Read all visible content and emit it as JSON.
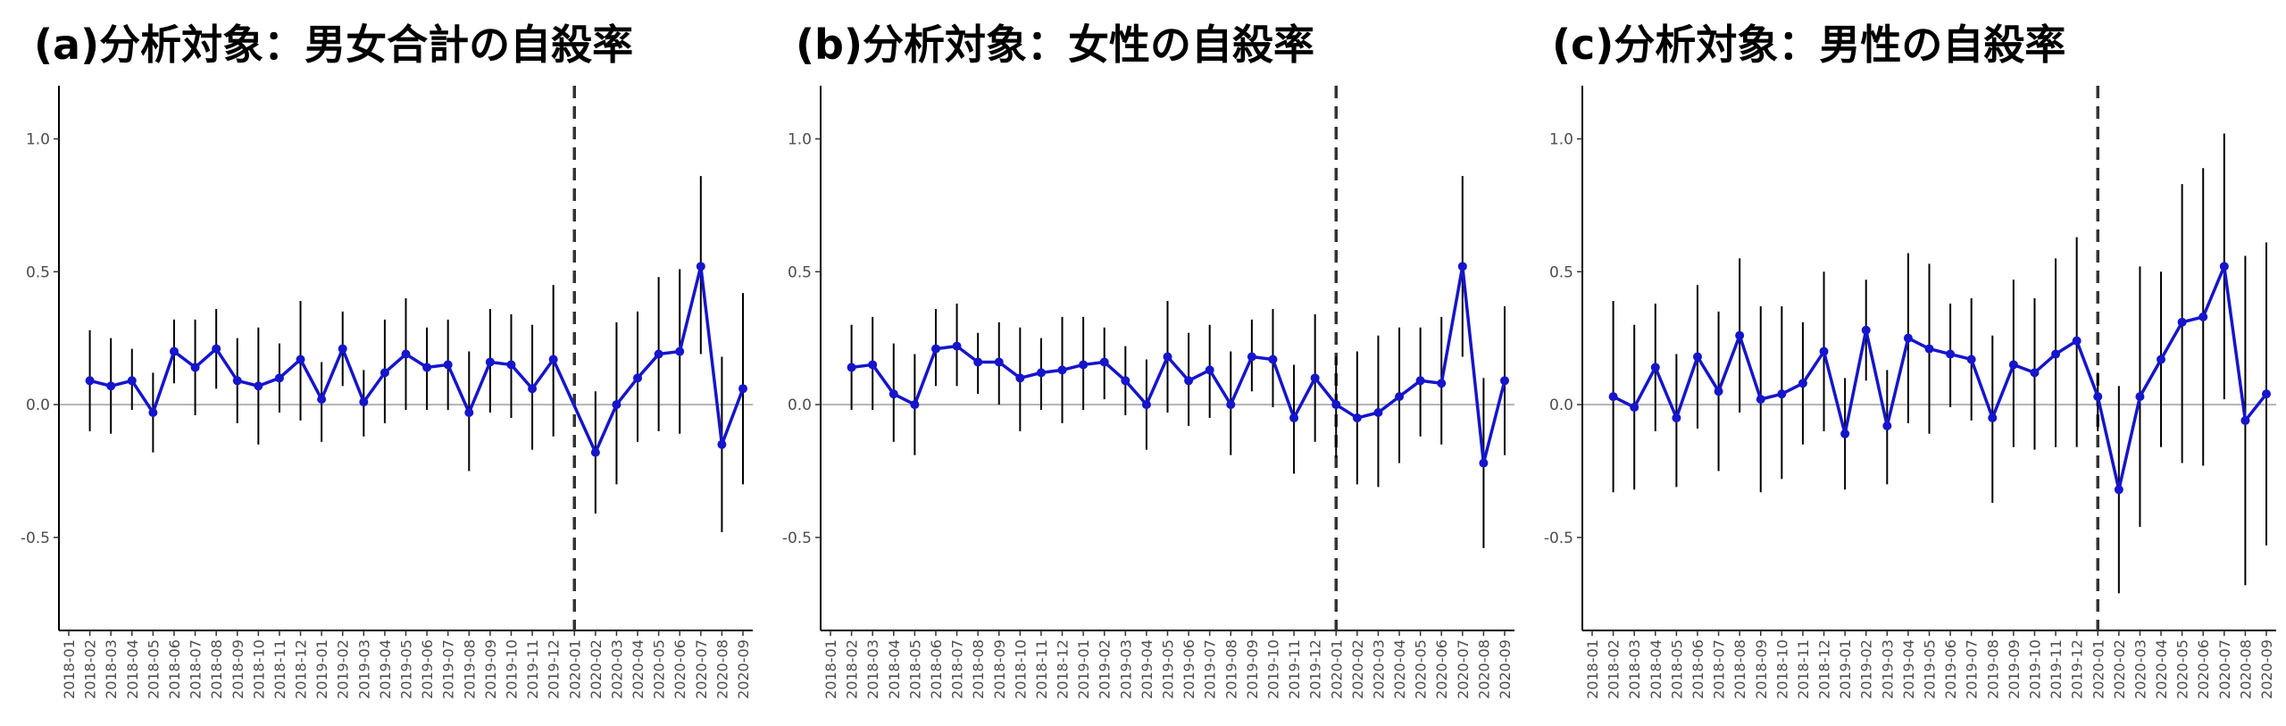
{
  "chart_data": [
    {
      "type": "line",
      "title": "(a)分析対象：男女合計の自殺率",
      "xlabel": "",
      "ylabel": "",
      "ylim": [
        -0.85,
        1.2
      ],
      "yticks": [
        "1.0",
        "0.5",
        "0.0",
        "-0.5"
      ],
      "ytick_values": [
        1.0,
        0.5,
        0.0,
        -0.5
      ],
      "reference_date": "2020-01",
      "reference_style": "dashed",
      "x": [
        "2018-01",
        "2018-02",
        "2018-03",
        "2018-04",
        "2018-05",
        "2018-06",
        "2018-07",
        "2018-08",
        "2018-09",
        "2018-10",
        "2018-11",
        "2018-12",
        "2019-01",
        "2019-02",
        "2019-03",
        "2019-04",
        "2019-05",
        "2019-06",
        "2019-07",
        "2019-08",
        "2019-09",
        "2019-10",
        "2019-11",
        "2019-12",
        "2020-01",
        "2020-02",
        "2020-03",
        "2020-04",
        "2020-05",
        "2020-06",
        "2020-07",
        "2020-08",
        "2020-09"
      ],
      "points": [
        {
          "x": "2018-02",
          "y": 0.09,
          "lo": -0.1,
          "hi": 0.28
        },
        {
          "x": "2018-03",
          "y": 0.07,
          "lo": -0.11,
          "hi": 0.25
        },
        {
          "x": "2018-04",
          "y": 0.09,
          "lo": -0.02,
          "hi": 0.21
        },
        {
          "x": "2018-05",
          "y": -0.03,
          "lo": -0.18,
          "hi": 0.12
        },
        {
          "x": "2018-06",
          "y": 0.2,
          "lo": 0.08,
          "hi": 0.32
        },
        {
          "x": "2018-07",
          "y": 0.14,
          "lo": -0.04,
          "hi": 0.32
        },
        {
          "x": "2018-08",
          "y": 0.21,
          "lo": 0.06,
          "hi": 0.36
        },
        {
          "x": "2018-09",
          "y": 0.09,
          "lo": -0.07,
          "hi": 0.25
        },
        {
          "x": "2018-10",
          "y": 0.07,
          "lo": -0.15,
          "hi": 0.29
        },
        {
          "x": "2018-11",
          "y": 0.1,
          "lo": -0.03,
          "hi": 0.23
        },
        {
          "x": "2018-12",
          "y": 0.17,
          "lo": -0.06,
          "hi": 0.39
        },
        {
          "x": "2019-01",
          "y": 0.02,
          "lo": -0.14,
          "hi": 0.16
        },
        {
          "x": "2019-02",
          "y": 0.21,
          "lo": 0.07,
          "hi": 0.35
        },
        {
          "x": "2019-03",
          "y": 0.01,
          "lo": -0.12,
          "hi": 0.13
        },
        {
          "x": "2019-04",
          "y": 0.12,
          "lo": -0.07,
          "hi": 0.32
        },
        {
          "x": "2019-05",
          "y": 0.19,
          "lo": -0.02,
          "hi": 0.4
        },
        {
          "x": "2019-06",
          "y": 0.14,
          "lo": -0.02,
          "hi": 0.29
        },
        {
          "x": "2019-07",
          "y": 0.15,
          "lo": -0.02,
          "hi": 0.32
        },
        {
          "x": "2019-08",
          "y": -0.03,
          "lo": -0.25,
          "hi": 0.2
        },
        {
          "x": "2019-09",
          "y": 0.16,
          "lo": -0.03,
          "hi": 0.36
        },
        {
          "x": "2019-10",
          "y": 0.15,
          "lo": -0.05,
          "hi": 0.34
        },
        {
          "x": "2019-11",
          "y": 0.06,
          "lo": -0.17,
          "hi": 0.3
        },
        {
          "x": "2019-12",
          "y": 0.17,
          "lo": -0.12,
          "hi": 0.45
        },
        {
          "x": "2020-02",
          "y": -0.18,
          "lo": -0.41,
          "hi": 0.05
        },
        {
          "x": "2020-03",
          "y": 0.0,
          "lo": -0.3,
          "hi": 0.31
        },
        {
          "x": "2020-04",
          "y": 0.1,
          "lo": -0.14,
          "hi": 0.35
        },
        {
          "x": "2020-05",
          "y": 0.19,
          "lo": -0.1,
          "hi": 0.48
        },
        {
          "x": "2020-06",
          "y": 0.2,
          "lo": -0.11,
          "hi": 0.51
        },
        {
          "x": "2020-07",
          "y": 0.52,
          "lo": 0.19,
          "hi": 0.86
        },
        {
          "x": "2020-08",
          "y": -0.15,
          "lo": -0.48,
          "hi": 0.18
        },
        {
          "x": "2020-09",
          "y": 0.06,
          "lo": -0.3,
          "hi": 0.42
        }
      ]
    },
    {
      "type": "line",
      "title": "(b)分析対象：女性の自殺率",
      "xlabel": "",
      "ylabel": "",
      "ylim": [
        -0.85,
        1.2
      ],
      "yticks": [
        "1.0",
        "0.5",
        "0.0",
        "-0.5"
      ],
      "ytick_values": [
        1.0,
        0.5,
        0.0,
        -0.5
      ],
      "reference_date": "2020-01",
      "reference_style": "dashed",
      "x": [
        "2018-01",
        "2018-02",
        "2018-03",
        "2018-04",
        "2018-05",
        "2018-06",
        "2018-07",
        "2018-08",
        "2018-09",
        "2018-10",
        "2018-11",
        "2018-12",
        "2019-01",
        "2019-02",
        "2019-03",
        "2019-04",
        "2019-05",
        "2019-06",
        "2019-07",
        "2019-08",
        "2019-09",
        "2019-10",
        "2019-11",
        "2019-12",
        "2020-01",
        "2020-02",
        "2020-03",
        "2020-04",
        "2020-05",
        "2020-06",
        "2020-07",
        "2020-08",
        "2020-09"
      ],
      "points": [
        {
          "x": "2018-02",
          "y": 0.14,
          "lo": -0.02,
          "hi": 0.3
        },
        {
          "x": "2018-03",
          "y": 0.15,
          "lo": -0.02,
          "hi": 0.33
        },
        {
          "x": "2018-04",
          "y": 0.04,
          "lo": -0.14,
          "hi": 0.23
        },
        {
          "x": "2018-05",
          "y": 0.0,
          "lo": -0.19,
          "hi": 0.19
        },
        {
          "x": "2018-06",
          "y": 0.21,
          "lo": 0.07,
          "hi": 0.36
        },
        {
          "x": "2018-07",
          "y": 0.22,
          "lo": 0.07,
          "hi": 0.38
        },
        {
          "x": "2018-08",
          "y": 0.16,
          "lo": 0.04,
          "hi": 0.27
        },
        {
          "x": "2018-09",
          "y": 0.16,
          "lo": 0.0,
          "hi": 0.31
        },
        {
          "x": "2018-10",
          "y": 0.1,
          "lo": -0.1,
          "hi": 0.29
        },
        {
          "x": "2018-11",
          "y": 0.12,
          "lo": -0.02,
          "hi": 0.25
        },
        {
          "x": "2018-12",
          "y": 0.13,
          "lo": -0.07,
          "hi": 0.33
        },
        {
          "x": "2019-01",
          "y": 0.15,
          "lo": -0.02,
          "hi": 0.33
        },
        {
          "x": "2019-02",
          "y": 0.16,
          "lo": 0.02,
          "hi": 0.29
        },
        {
          "x": "2019-03",
          "y": 0.09,
          "lo": -0.04,
          "hi": 0.22
        },
        {
          "x": "2019-04",
          "y": 0.0,
          "lo": -0.17,
          "hi": 0.17
        },
        {
          "x": "2019-05",
          "y": 0.18,
          "lo": -0.03,
          "hi": 0.39
        },
        {
          "x": "2019-06",
          "y": 0.09,
          "lo": -0.08,
          "hi": 0.27
        },
        {
          "x": "2019-07",
          "y": 0.13,
          "lo": -0.05,
          "hi": 0.3
        },
        {
          "x": "2019-08",
          "y": 0.0,
          "lo": -0.19,
          "hi": 0.2
        },
        {
          "x": "2019-09",
          "y": 0.18,
          "lo": 0.05,
          "hi": 0.32
        },
        {
          "x": "2019-10",
          "y": 0.17,
          "lo": -0.01,
          "hi": 0.36
        },
        {
          "x": "2019-11",
          "y": -0.05,
          "lo": -0.26,
          "hi": 0.15
        },
        {
          "x": "2019-12",
          "y": 0.1,
          "lo": -0.14,
          "hi": 0.34
        },
        {
          "x": "2020-01",
          "y": 0.0,
          "lo": -0.2,
          "hi": 0.18
        },
        {
          "x": "2020-02",
          "y": -0.05,
          "lo": -0.3,
          "hi": 0.2
        },
        {
          "x": "2020-03",
          "y": -0.03,
          "lo": -0.31,
          "hi": 0.26
        },
        {
          "x": "2020-04",
          "y": 0.03,
          "lo": -0.22,
          "hi": 0.29
        },
        {
          "x": "2020-05",
          "y": 0.09,
          "lo": -0.12,
          "hi": 0.29
        },
        {
          "x": "2020-06",
          "y": 0.08,
          "lo": -0.15,
          "hi": 0.33
        },
        {
          "x": "2020-07",
          "y": 0.52,
          "lo": 0.18,
          "hi": 0.86
        },
        {
          "x": "2020-08",
          "y": -0.22,
          "lo": -0.54,
          "hi": 0.1
        },
        {
          "x": "2020-09",
          "y": 0.09,
          "lo": -0.19,
          "hi": 0.37
        }
      ]
    },
    {
      "type": "line",
      "title": "(c)分析対象：男性の自殺率",
      "xlabel": "",
      "ylabel": "",
      "ylim": [
        -0.85,
        1.2
      ],
      "yticks": [
        "1.0",
        "0.5",
        "0.0",
        "-0.5"
      ],
      "ytick_values": [
        1.0,
        0.5,
        0.0,
        -0.5
      ],
      "reference_date": "2020-01",
      "reference_style": "dashed",
      "x": [
        "2018-01",
        "2018-02",
        "2018-03",
        "2018-04",
        "2018-05",
        "2018-06",
        "2018-07",
        "2018-08",
        "2018-09",
        "2018-10",
        "2018-11",
        "2018-12",
        "2019-01",
        "2019-02",
        "2019-03",
        "2019-04",
        "2019-05",
        "2019-06",
        "2019-07",
        "2019-08",
        "2019-09",
        "2019-10",
        "2019-11",
        "2019-12",
        "2020-01",
        "2020-02",
        "2020-03",
        "2020-04",
        "2020-05",
        "2020-06",
        "2020-07",
        "2020-08",
        "2020-09"
      ],
      "points": [
        {
          "x": "2018-02",
          "y": 0.03,
          "lo": -0.33,
          "hi": 0.39
        },
        {
          "x": "2018-03",
          "y": -0.01,
          "lo": -0.32,
          "hi": 0.3
        },
        {
          "x": "2018-04",
          "y": 0.14,
          "lo": -0.1,
          "hi": 0.38
        },
        {
          "x": "2018-05",
          "y": -0.05,
          "lo": -0.31,
          "hi": 0.19
        },
        {
          "x": "2018-06",
          "y": 0.18,
          "lo": -0.09,
          "hi": 0.45
        },
        {
          "x": "2018-07",
          "y": 0.05,
          "lo": -0.25,
          "hi": 0.35
        },
        {
          "x": "2018-08",
          "y": 0.26,
          "lo": -0.03,
          "hi": 0.55
        },
        {
          "x": "2018-09",
          "y": 0.02,
          "lo": -0.33,
          "hi": 0.37
        },
        {
          "x": "2018-10",
          "y": 0.04,
          "lo": -0.28,
          "hi": 0.37
        },
        {
          "x": "2018-11",
          "y": 0.08,
          "lo": -0.15,
          "hi": 0.31
        },
        {
          "x": "2018-12",
          "y": 0.2,
          "lo": -0.1,
          "hi": 0.5
        },
        {
          "x": "2019-01",
          "y": -0.11,
          "lo": -0.32,
          "hi": 0.1
        },
        {
          "x": "2019-02",
          "y": 0.28,
          "lo": 0.09,
          "hi": 0.47
        },
        {
          "x": "2019-03",
          "y": -0.08,
          "lo": -0.3,
          "hi": 0.13
        },
        {
          "x": "2019-04",
          "y": 0.25,
          "lo": -0.07,
          "hi": 0.57
        },
        {
          "x": "2019-05",
          "y": 0.21,
          "lo": -0.11,
          "hi": 0.53
        },
        {
          "x": "2019-06",
          "y": 0.19,
          "lo": -0.01,
          "hi": 0.38
        },
        {
          "x": "2019-07",
          "y": 0.17,
          "lo": -0.06,
          "hi": 0.4
        },
        {
          "x": "2019-08",
          "y": -0.05,
          "lo": -0.37,
          "hi": 0.26
        },
        {
          "x": "2019-09",
          "y": 0.15,
          "lo": -0.16,
          "hi": 0.47
        },
        {
          "x": "2019-10",
          "y": 0.12,
          "lo": -0.17,
          "hi": 0.4
        },
        {
          "x": "2019-11",
          "y": 0.19,
          "lo": -0.16,
          "hi": 0.55
        },
        {
          "x": "2019-12",
          "y": 0.24,
          "lo": -0.16,
          "hi": 0.63
        },
        {
          "x": "2020-01",
          "y": 0.03,
          "lo": -0.1,
          "hi": 0.12
        },
        {
          "x": "2020-02",
          "y": -0.32,
          "lo": -0.71,
          "hi": 0.07
        },
        {
          "x": "2020-03",
          "y": 0.03,
          "lo": -0.46,
          "hi": 0.52
        },
        {
          "x": "2020-04",
          "y": 0.17,
          "lo": -0.16,
          "hi": 0.5
        },
        {
          "x": "2020-05",
          "y": 0.31,
          "lo": -0.22,
          "hi": 0.83
        },
        {
          "x": "2020-06",
          "y": 0.33,
          "lo": -0.23,
          "hi": 0.89
        },
        {
          "x": "2020-07",
          "y": 0.52,
          "lo": 0.02,
          "hi": 1.02
        },
        {
          "x": "2020-08",
          "y": -0.06,
          "lo": -0.68,
          "hi": 0.56
        },
        {
          "x": "2020-09",
          "y": 0.04,
          "lo": -0.53,
          "hi": 0.61
        }
      ]
    }
  ],
  "colors": {
    "series": "#1515cc",
    "error_bars": "#000000",
    "zero_line": "#b3b3b3",
    "reference_line": "#333333"
  }
}
